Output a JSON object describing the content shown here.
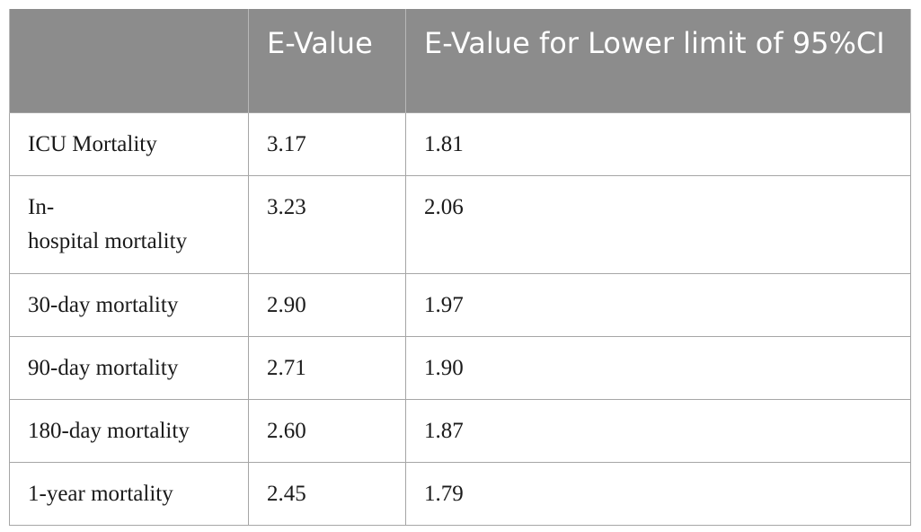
{
  "table": {
    "headers": [
      "",
      "E-Value",
      "E-Value for Lower limit of 95%CI"
    ],
    "rows": [
      {
        "outcome": "ICU Mortality",
        "e_value": "3.17",
        "e_value_lower": "1.81"
      },
      {
        "outcome": "In-hospital mortality",
        "outcome_line1": "In-",
        "outcome_line2": "hospital mortality",
        "e_value": "3.23",
        "e_value_lower": "2.06"
      },
      {
        "outcome": "30-day mortality",
        "e_value": "2.90",
        "e_value_lower": "1.97"
      },
      {
        "outcome": "90-day mortality",
        "e_value": "2.71",
        "e_value_lower": "1.90"
      },
      {
        "outcome": "180-day mortality",
        "e_value": "2.60",
        "e_value_lower": "1.87"
      },
      {
        "outcome": "1-year mortality",
        "e_value": "2.45",
        "e_value_lower": "1.79"
      }
    ]
  }
}
